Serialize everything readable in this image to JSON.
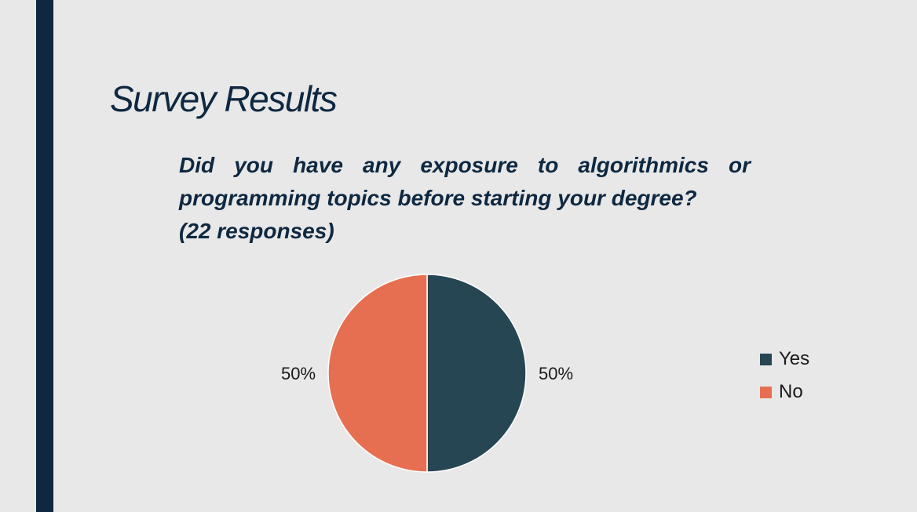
{
  "slide": {
    "title": "Survey Results",
    "question_lines": [
      "Did you have any exposure to algorithmics or",
      "programming topics before starting your degree?",
      "(22 responses)"
    ]
  },
  "colors": {
    "accent": "#0e2841",
    "background": "#e8e8e8",
    "yes": "#264653",
    "no": "#e76f51"
  },
  "chart_data": {
    "type": "pie",
    "slices": [
      {
        "label": "Yes",
        "value": 50,
        "display": "50%",
        "color": "#264653"
      },
      {
        "label": "No",
        "value": 50,
        "display": "50%",
        "color": "#e76f51"
      }
    ],
    "legend_position": "right"
  }
}
